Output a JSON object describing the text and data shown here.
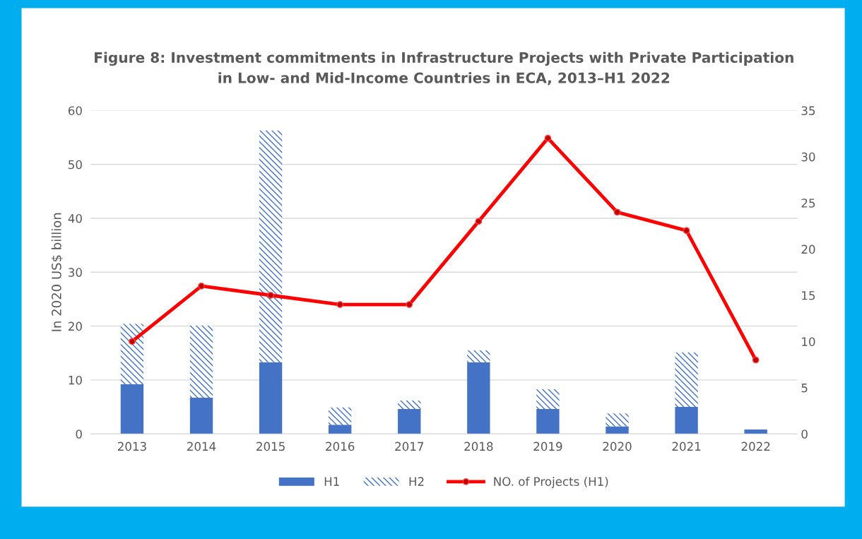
{
  "chart_data": {
    "type": "bar",
    "title": "Figure 8: Investment commitments in Infrastructure Projects with Private Participation\nin Low- and Mid-Income Countries in ECA, 2013–H1 2022",
    "ylabel": "In 2020 US$ billion",
    "categories": [
      "2013",
      "2014",
      "2015",
      "2016",
      "2017",
      "2018",
      "2019",
      "2020",
      "2021",
      "2022"
    ],
    "stacked": true,
    "series": [
      {
        "name": "H1",
        "color": "#4472c4",
        "values": [
          9.2,
          6.7,
          13.3,
          1.7,
          4.6,
          13.3,
          4.6,
          1.4,
          5.0,
          0.8
        ]
      },
      {
        "name": "H2",
        "color": "#4472c4",
        "values": [
          11.2,
          13.4,
          43.0,
          3.2,
          1.6,
          2.2,
          3.7,
          2.4,
          10.1,
          null
        ]
      },
      {
        "name": "NO. of Projects (H1)",
        "type": "line",
        "axis": "y2",
        "color": "#ff0000",
        "marker": "circle",
        "line_style": "solid",
        "values": [
          10,
          16,
          15,
          14,
          14,
          23,
          32,
          24,
          22,
          8
        ]
      }
    ],
    "ylim": [
      0,
      60
    ],
    "yticks": [
      0,
      10,
      20,
      30,
      40,
      50,
      60
    ],
    "y2lim": [
      0,
      35
    ],
    "y2ticks": [
      0,
      5,
      10,
      15,
      20,
      25,
      30,
      35
    ],
    "grid": "y",
    "legend": "bottom"
  }
}
